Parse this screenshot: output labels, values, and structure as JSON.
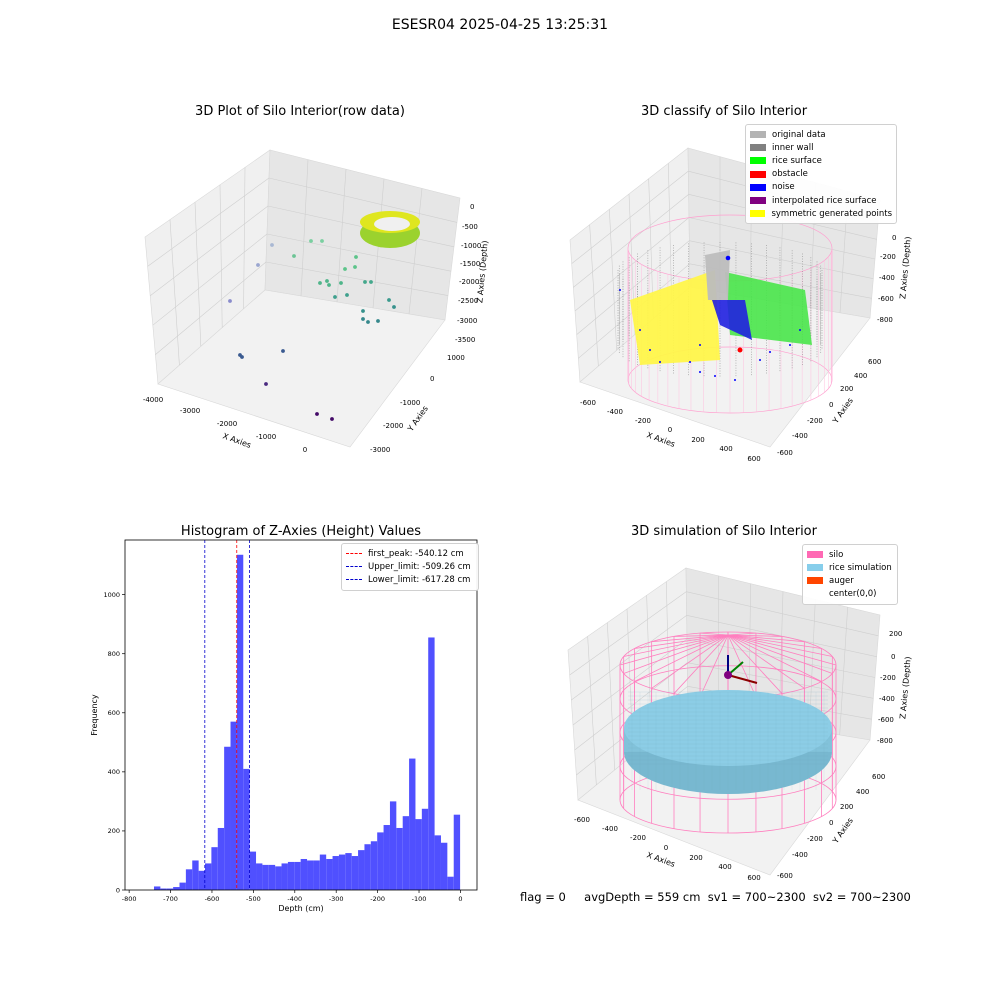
{
  "suptitle": "ESESR04 2025-04-25 13:25:31",
  "status": {
    "flag": "flag = 0",
    "avg_depth": "avgDepth = 559 cm",
    "sv1": "sv1 = 700~2300",
    "sv2": "sv2 = 700~2300"
  },
  "chart_data": [
    {
      "id": "raw",
      "type": "scatter",
      "title": "3D Plot of Silo Interior(row data)",
      "xlabel": "X Axies",
      "ylabel": "Y Axies",
      "zlabel": "Z Axies (Depth)",
      "x_ticks": [
        "-4000",
        "-3000",
        "-2000",
        "-1000",
        "0"
      ],
      "y_ticks": [
        "-3000",
        "-2000",
        "-1000",
        "0",
        "1000"
      ],
      "z_ticks": [
        "-3500",
        "-3000",
        "-2500",
        "-2000",
        "-1500",
        "-1000",
        "-500",
        "0"
      ]
    },
    {
      "id": "classify",
      "type": "scatter",
      "title": "3D classify of Silo Interior",
      "xlabel": "X Axies",
      "ylabel": "Y Axies",
      "zlabel": "Z Axies (Depth)",
      "x_ticks": [
        "-600",
        "-400",
        "-200",
        "0",
        "200",
        "400",
        "600"
      ],
      "y_ticks": [
        "-600",
        "-400",
        "-200",
        "0",
        "200",
        "400",
        "600"
      ],
      "z_ticks": [
        "-800",
        "-600",
        "-400",
        "-200",
        "0"
      ],
      "legend": [
        {
          "label": "original data",
          "color": "#b3b3b3"
        },
        {
          "label": "inner wall",
          "color": "#808080"
        },
        {
          "label": "rice surface",
          "color": "#00ff00"
        },
        {
          "label": "obstacle",
          "color": "#ff0000"
        },
        {
          "label": "noise",
          "color": "#0000ff"
        },
        {
          "label": "interpolated rice surface",
          "color": "#800080"
        },
        {
          "label": "symmetric generated points",
          "color": "#ffff00"
        }
      ]
    },
    {
      "id": "histogram",
      "type": "bar",
      "title": "Histogram of Z-Axies (Height) Values",
      "xlabel": "Depth (cm)",
      "ylabel": "Frequency",
      "xlim": [
        -810,
        40
      ],
      "ylim": [
        0,
        1185
      ],
      "x_ticks": [
        -800,
        -700,
        -600,
        -500,
        -400,
        -300,
        -200,
        -100,
        0
      ],
      "y_ticks": [
        0,
        200,
        400,
        600,
        800,
        1000
      ],
      "bar_color": "#5050ff",
      "bin_start": -740,
      "bin_width": 15.4,
      "values": [
        12,
        5,
        5,
        10,
        25,
        70,
        100,
        65,
        90,
        145,
        210,
        485,
        570,
        1135,
        410,
        130,
        90,
        85,
        85,
        80,
        90,
        95,
        95,
        105,
        100,
        100,
        120,
        105,
        115,
        120,
        125,
        115,
        135,
        155,
        165,
        195,
        220,
        300,
        210,
        250,
        445,
        240,
        275,
        855,
        185,
        160,
        45,
        255
      ],
      "lines": [
        {
          "label": "first_peak: -540.12 cm",
          "value": -540.12,
          "color": "#ff0000"
        },
        {
          "label": "Upper_limit: -509.26 cm",
          "value": -509.26,
          "color": "#0000cc"
        },
        {
          "label": "Lower_limit: -617.28 cm",
          "value": -617.28,
          "color": "#0000cc"
        }
      ]
    },
    {
      "id": "simulation",
      "type": "scatter",
      "title": "3D simulation of Silo Interior",
      "xlabel": "X Axies",
      "ylabel": "Y Axies",
      "zlabel": "Z Axies (Depth)",
      "x_ticks": [
        "-600",
        "-400",
        "-200",
        "0",
        "200",
        "400",
        "600"
      ],
      "y_ticks": [
        "-600",
        "-400",
        "-200",
        "0",
        "200",
        "400",
        "600"
      ],
      "z_ticks": [
        "-800",
        "-600",
        "-400",
        "-200",
        "0",
        "200"
      ],
      "legend": [
        {
          "label": "silo",
          "color": "#ff69b4"
        },
        {
          "label": "rice simulation",
          "color": "#87ceeb"
        },
        {
          "label": "auger",
          "color": "#ff4500"
        },
        {
          "label": "center(0,0)",
          "color": ""
        }
      ]
    }
  ]
}
